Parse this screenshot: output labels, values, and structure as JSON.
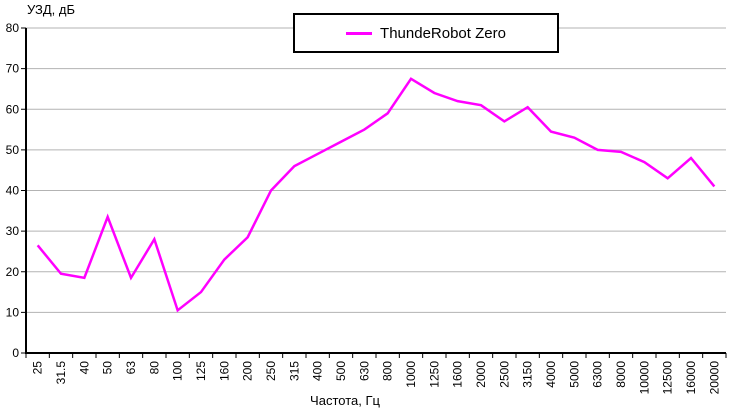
{
  "chart_data": {
    "type": "line",
    "title_ylabel": "УЗД, дБ",
    "xlabel": "Частота, Гц",
    "categories": [
      "25",
      "31.5",
      "40",
      "50",
      "63",
      "80",
      "100",
      "125",
      "160",
      "200",
      "250",
      "315",
      "400",
      "500",
      "630",
      "800",
      "1000",
      "1250",
      "1600",
      "2000",
      "2500",
      "3150",
      "4000",
      "5000",
      "6300",
      "8000",
      "10000",
      "12500",
      "16000",
      "20000"
    ],
    "series": [
      {
        "name": "ThundeRobot Zero",
        "color": "#FF00FF",
        "values": [
          26.5,
          19.5,
          18.5,
          33.5,
          18.5,
          28,
          10.5,
          15,
          23,
          28.5,
          40,
          46,
          49,
          52,
          55,
          59,
          67.5,
          64,
          62,
          61,
          57,
          60.5,
          54.5,
          53,
          50,
          49.5,
          47,
          43,
          48,
          41
        ]
      }
    ],
    "ylim": [
      0,
      80
    ],
    "ytick_step": 10,
    "grid": true,
    "legend_position": "top-center",
    "colors": {
      "gridline": "#b3b3b3",
      "axis": "#000000",
      "background": "#ffffff"
    }
  }
}
